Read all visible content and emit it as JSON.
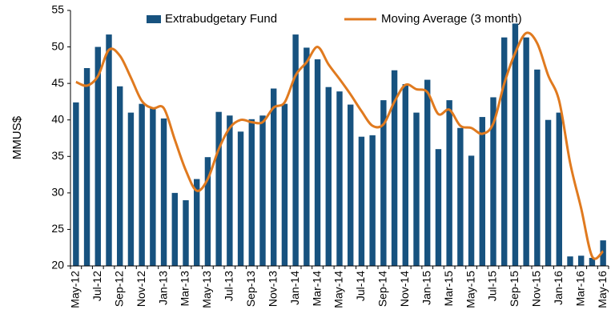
{
  "chart_data": {
    "type": "bar",
    "y_label": "MMUS$",
    "categories": [
      "May-12",
      null,
      "Jul-12",
      null,
      "Sep-12",
      null,
      "Nov-12",
      null,
      "Jan-13",
      null,
      "Mar-13",
      null,
      "May-13",
      null,
      "Jul-13",
      null,
      "Sep-13",
      null,
      "Nov-13",
      null,
      "Jan-14",
      null,
      "Mar-14",
      null,
      "May-14",
      null,
      "Jul-14",
      null,
      "Sep-14",
      null,
      "Nov-14",
      null,
      "Jan-15",
      null,
      "Mar-15",
      null,
      "May-15",
      null,
      "Jul-15",
      null,
      "Sep-15",
      null,
      "Nov-15",
      null,
      "Jan-16",
      null,
      "Mar-16",
      null,
      "May-16"
    ],
    "series": [
      {
        "name": "Extrabudgetary Fund",
        "type": "bar",
        "color": "#17527f",
        "values": [
          42.4,
          47.1,
          50,
          51.7,
          44.6,
          41,
          42.2,
          41.6,
          40.2,
          30,
          29,
          31.9,
          34.9,
          41.1,
          40.6,
          38.4,
          40.1,
          40.6,
          44.3,
          42.2,
          51.7,
          49.9,
          48.3,
          44.5,
          43.9,
          42.1,
          37.7,
          37.9,
          42.7,
          46.8,
          44.9,
          41,
          45.5,
          36,
          42.7,
          38.9,
          35.1,
          40.4,
          43.1,
          51.3,
          53.2,
          51.3,
          46.9,
          40,
          41,
          21.3,
          21.4,
          21.1,
          23.5
        ]
      },
      {
        "name": "Moving Average (3 month)",
        "type": "line",
        "color": "#e07a1f",
        "values": [
          45.2,
          44.7,
          46,
          49.6,
          48.8,
          45.8,
          42.6,
          41.6,
          41.6,
          37.3,
          33.1,
          30.3,
          31.9,
          36,
          38.9,
          40,
          39.7,
          39.7,
          41.7,
          42.4,
          46.1,
          47.9,
          50,
          47.6,
          45.6,
          43.5,
          41.2,
          39.2,
          39.4,
          42.5,
          44.8,
          44.2,
          43.8,
          40.8,
          41.4,
          39.2,
          38.9,
          38.1,
          39.5,
          45,
          49.2,
          51.9,
          50.5,
          46.1,
          42.6,
          34.1,
          27.9,
          21.3,
          22
        ]
      }
    ],
    "ylim": [
      20,
      55
    ],
    "yticks": [
      20,
      25,
      30,
      35,
      40,
      45,
      50,
      55
    ],
    "grid": false,
    "legend": "top"
  }
}
